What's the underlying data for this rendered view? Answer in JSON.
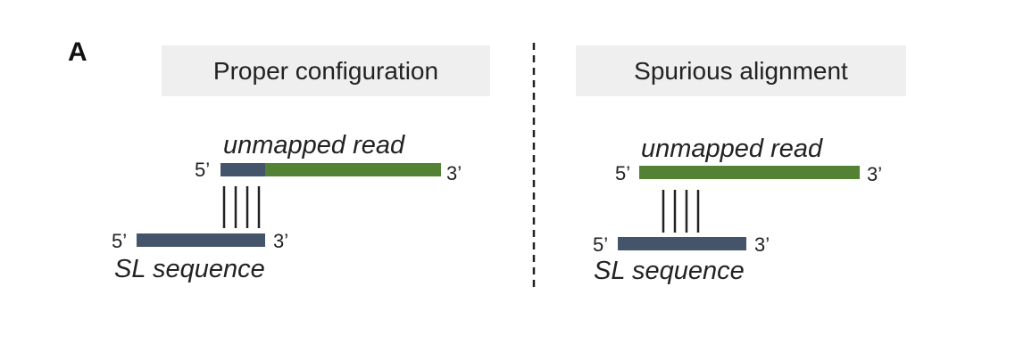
{
  "panel_label": "A",
  "colors": {
    "sl_bar": "#44546a",
    "read_bar": "#548235",
    "header_bg": "#efefef",
    "lines": "#222222"
  },
  "left_panel": {
    "header": "Proper configuration",
    "read_label": "unmapped read",
    "read_5prime": "5’",
    "read_3prime": "3’",
    "sl_5prime": "5’",
    "sl_3prime": "3’",
    "sl_label": "SL sequence"
  },
  "right_panel": {
    "header": "Spurious alignment",
    "read_label": "unmapped read",
    "read_5prime": "5’",
    "read_3prime": "3’",
    "sl_5prime": "5’",
    "sl_3prime": "3’",
    "sl_label": "SL sequence"
  }
}
